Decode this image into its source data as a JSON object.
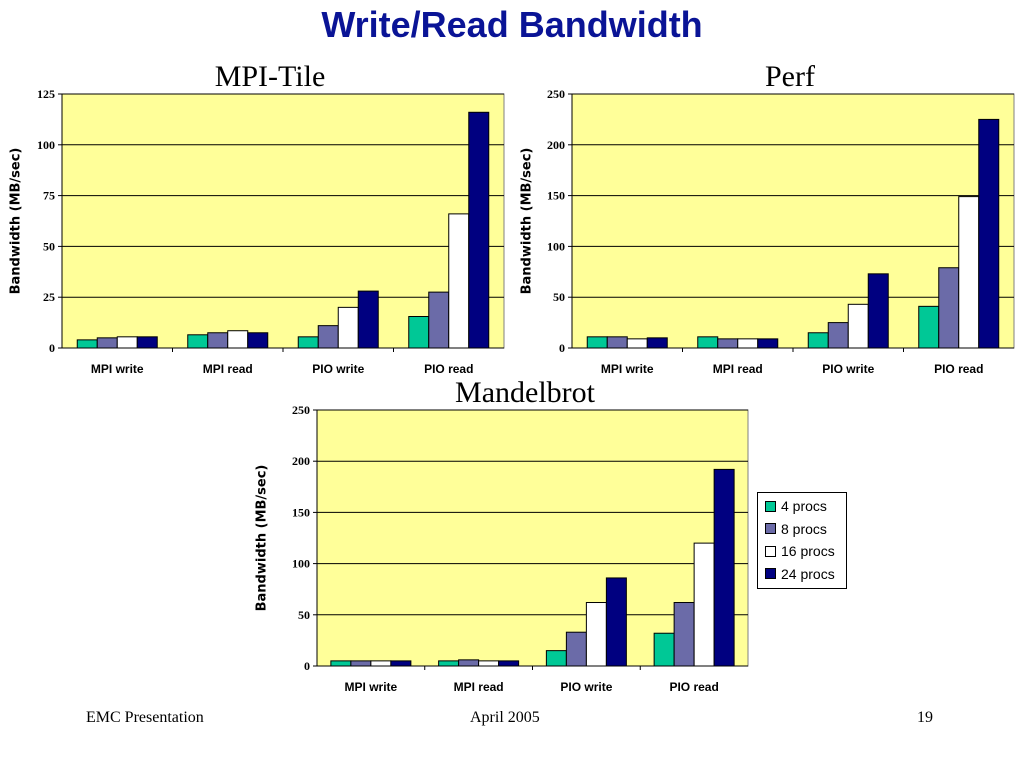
{
  "slide": {
    "title": "Write/Read Bandwidth",
    "footer_left": "EMC Presentation",
    "footer_center": "April 2005",
    "footer_right": "19"
  },
  "colors": {
    "plot_bg": "#ffff99",
    "series": [
      "#00c896",
      "#6b6ba8",
      "#ffffff",
      "#000080"
    ]
  },
  "legend": {
    "items": [
      "4 procs",
      "8 procs",
      "16 procs",
      "24 procs"
    ]
  },
  "chart_data": [
    {
      "type": "bar",
      "title": "MPI-Tile",
      "ylabel": "Bandwidth (MB/sec)",
      "categories": [
        "MPI write",
        "MPI read",
        "PIO write",
        "PIO read"
      ],
      "ylim": [
        0,
        125
      ],
      "yticks": [
        0,
        25,
        50,
        75,
        100,
        125
      ],
      "grid": true,
      "series": [
        {
          "name": "4 procs",
          "values": [
            4,
            6.5,
            5.5,
            15.5
          ]
        },
        {
          "name": "8 procs",
          "values": [
            5,
            7.5,
            11,
            27.5
          ]
        },
        {
          "name": "16 procs",
          "values": [
            5.5,
            8.5,
            20,
            66
          ]
        },
        {
          "name": "24 procs",
          "values": [
            5.5,
            7.5,
            28,
            116
          ]
        }
      ]
    },
    {
      "type": "bar",
      "title": "Perf",
      "ylabel": "Bandwidth (MB/sec)",
      "categories": [
        "MPI write",
        "MPI read",
        "PIO write",
        "PIO read"
      ],
      "ylim": [
        0,
        250
      ],
      "yticks": [
        0,
        50,
        100,
        150,
        200,
        250
      ],
      "grid": true,
      "series": [
        {
          "name": "4 procs",
          "values": [
            11,
            11,
            15,
            41
          ]
        },
        {
          "name": "8 procs",
          "values": [
            11,
            9,
            25,
            79
          ]
        },
        {
          "name": "16 procs",
          "values": [
            9,
            9,
            43,
            149
          ]
        },
        {
          "name": "24 procs",
          "values": [
            10,
            9,
            73,
            225
          ]
        }
      ]
    },
    {
      "type": "bar",
      "title": "Mandelbrot",
      "ylabel": "Bandwidth (MB/sec)",
      "categories": [
        "MPI write",
        "MPI read",
        "PIO write",
        "PIO read"
      ],
      "ylim": [
        0,
        250
      ],
      "yticks": [
        0,
        50,
        100,
        150,
        200,
        250
      ],
      "grid": true,
      "legend": "right",
      "series": [
        {
          "name": "4 procs",
          "values": [
            5,
            5,
            15,
            32
          ]
        },
        {
          "name": "8 procs",
          "values": [
            5,
            6,
            33,
            62
          ]
        },
        {
          "name": "16 procs",
          "values": [
            5,
            5,
            62,
            120
          ]
        },
        {
          "name": "24 procs",
          "values": [
            5,
            5,
            86,
            192
          ]
        }
      ]
    }
  ]
}
